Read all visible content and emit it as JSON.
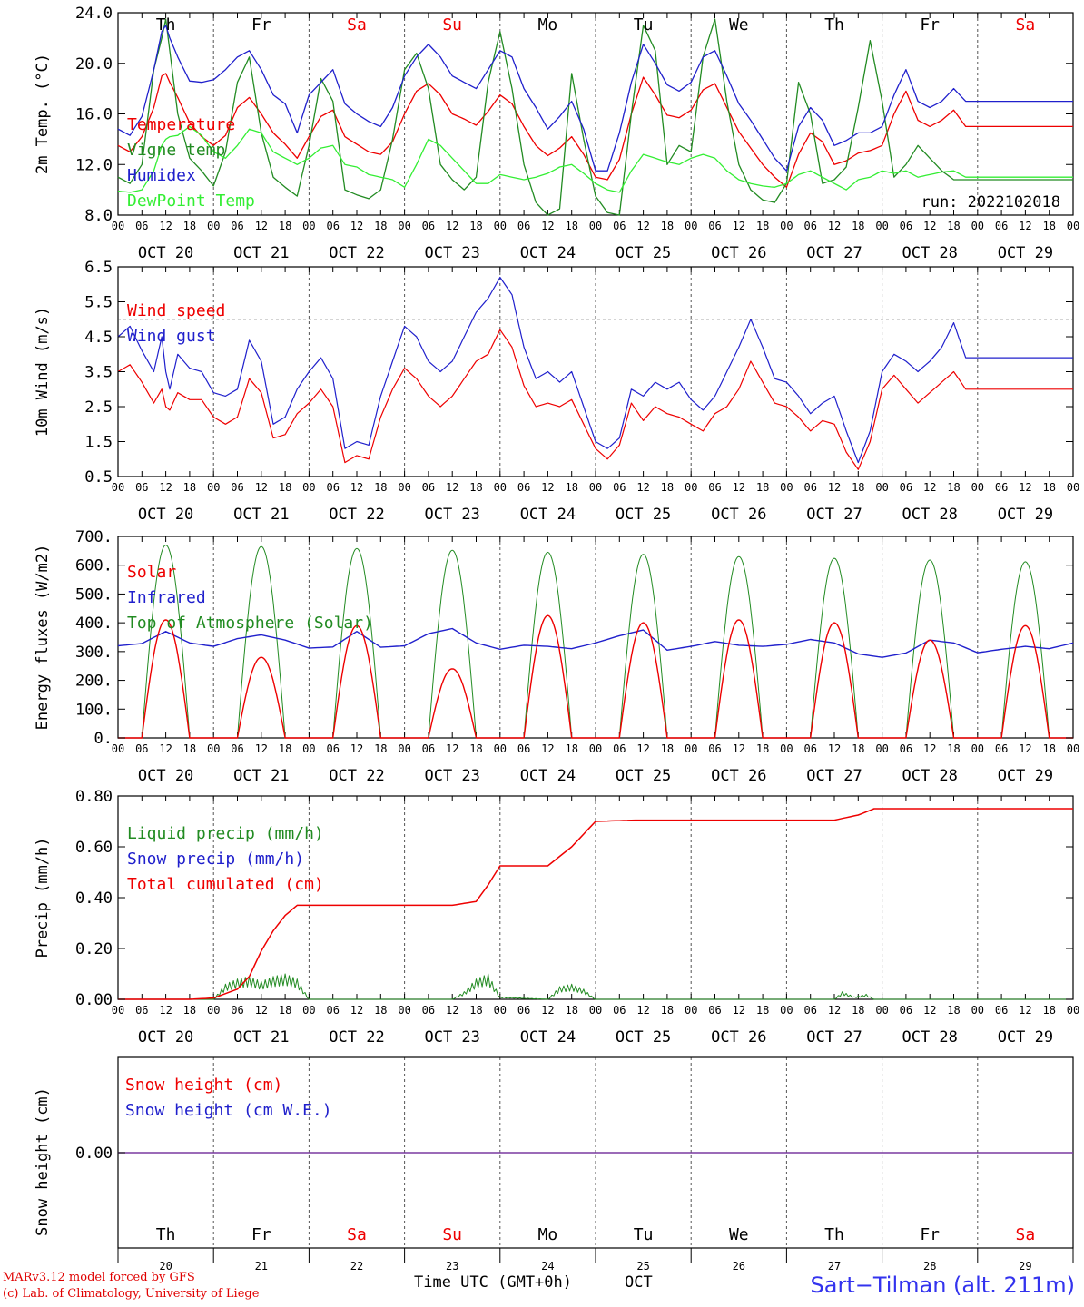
{
  "chart_data": [
    {
      "type": "line",
      "ylabel": "2m Temp. (°C)",
      "ylim": [
        8.0,
        24.0
      ],
      "yticks": [
        "8.0",
        "12.0",
        "16.0",
        "20.0",
        "24.0"
      ],
      "annotation": "run: 2022102018",
      "legend": [
        "Temperature",
        "Vigne temp",
        "Humidex",
        "DewPoint Temp"
      ],
      "x_hours": [
        0,
        3,
        6,
        9,
        11,
        12,
        13,
        15,
        18,
        21,
        24,
        27,
        30,
        33,
        36,
        39,
        42,
        45,
        48,
        51,
        54,
        57,
        60,
        63,
        66,
        69,
        72,
        75,
        78,
        81,
        84,
        87,
        90,
        93,
        96,
        99,
        102,
        105,
        108,
        111,
        114,
        117,
        120,
        123,
        126,
        129,
        132,
        135,
        138,
        141,
        144,
        147,
        150,
        153,
        156,
        159,
        162,
        165,
        168,
        171,
        174,
        177,
        180,
        183,
        186,
        189,
        192,
        195,
        198,
        201,
        204,
        207,
        210,
        213,
        216,
        219,
        222,
        225,
        228,
        231,
        234,
        237,
        240
      ],
      "series": [
        {
          "name": "Temperature",
          "color": "#ee0000",
          "values": [
            13.5,
            13.0,
            14.2,
            16.5,
            19.0,
            19.2,
            18.5,
            17.3,
            15.3,
            14.2,
            13.5,
            14.3,
            16.5,
            17.3,
            16.0,
            14.5,
            13.6,
            12.5,
            14.2,
            15.8,
            16.3,
            14.2,
            13.6,
            13.0,
            12.8,
            13.8,
            16.0,
            17.8,
            18.4,
            17.5,
            16.0,
            15.6,
            15.1,
            16.2,
            17.5,
            16.8,
            15.0,
            13.5,
            12.7,
            13.3,
            14.2,
            12.8,
            11.0,
            10.8,
            12.4,
            16.0,
            18.9,
            17.5,
            15.9,
            15.7,
            16.3,
            17.9,
            18.4,
            16.5,
            14.6,
            13.3,
            12.0,
            11.0,
            10.2,
            12.8,
            14.5,
            13.8,
            12.0,
            12.3,
            12.9,
            13.1,
            13.5,
            16.0,
            17.8,
            15.5,
            15.0,
            15.5,
            16.3,
            15.0,
            15.0,
            15.0,
            15.0,
            15.0,
            15.0,
            15.0,
            15.0,
            15.0,
            15.0
          ]
        },
        {
          "name": "Vigne temp",
          "color": "#228b22",
          "values": [
            11.0,
            10.5,
            12.0,
            19.5,
            22.0,
            23.5,
            21.0,
            16.0,
            12.5,
            11.5,
            10.3,
            13.0,
            18.5,
            20.5,
            14.5,
            11.0,
            10.2,
            9.5,
            13.5,
            18.8,
            17.0,
            10.0,
            9.6,
            9.3,
            10.0,
            14.0,
            19.5,
            20.8,
            18.0,
            12.0,
            10.8,
            10.0,
            11.0,
            18.5,
            22.5,
            18.0,
            12.0,
            9.0,
            8.0,
            8.5,
            19.2,
            14.0,
            9.5,
            8.2,
            8.0,
            16.0,
            23.0,
            21.0,
            12.0,
            13.5,
            13.0,
            20.5,
            23.5,
            17.0,
            12.0,
            10.0,
            9.2,
            9.0,
            10.5,
            18.5,
            16.0,
            10.5,
            10.8,
            11.8,
            16.5,
            21.8,
            17.0,
            11.0,
            12.0,
            13.5,
            12.5,
            11.5,
            10.8,
            10.8,
            10.8,
            10.8,
            10.8,
            10.8,
            10.8,
            10.8,
            10.8,
            10.8,
            10.8
          ]
        },
        {
          "name": "Humidex",
          "color": "#2020cc",
          "values": [
            14.8,
            14.3,
            15.8,
            19.5,
            22.5,
            23.0,
            22.0,
            20.5,
            18.6,
            18.5,
            18.7,
            19.5,
            20.5,
            21.0,
            19.5,
            17.5,
            16.8,
            14.5,
            17.5,
            18.5,
            19.5,
            16.8,
            16.0,
            15.4,
            15.0,
            16.5,
            19.0,
            20.5,
            21.5,
            20.5,
            19.0,
            18.5,
            18.0,
            19.5,
            21.0,
            20.5,
            18.0,
            16.5,
            14.8,
            15.8,
            17.0,
            14.8,
            11.5,
            11.5,
            14.5,
            18.5,
            21.5,
            20.0,
            18.3,
            17.8,
            18.5,
            20.5,
            21.0,
            19.0,
            16.8,
            15.5,
            14.0,
            12.5,
            11.5,
            15.0,
            16.5,
            15.5,
            13.5,
            13.9,
            14.5,
            14.5,
            15.0,
            17.5,
            19.5,
            17.0,
            16.5,
            17.0,
            18.0,
            17.0,
            17.0,
            17.0,
            17.0,
            17.0,
            17.0,
            17.0,
            17.0,
            17.0,
            17.0
          ]
        },
        {
          "name": "DewPoint Temp",
          "color": "#33ee33",
          "values": [
            9.9,
            9.8,
            10.0,
            11.5,
            13.5,
            14.0,
            14.2,
            14.3,
            15.0,
            14.3,
            13.0,
            12.5,
            13.5,
            14.8,
            14.5,
            13.0,
            12.5,
            12.0,
            12.5,
            13.3,
            13.5,
            12.0,
            11.8,
            11.2,
            11.0,
            10.8,
            10.2,
            12.0,
            14.0,
            13.5,
            12.5,
            11.5,
            10.5,
            10.5,
            11.2,
            11.0,
            10.8,
            11.0,
            11.3,
            11.8,
            12.0,
            11.3,
            10.5,
            10.0,
            9.8,
            11.5,
            12.8,
            12.5,
            12.2,
            12.0,
            12.5,
            12.8,
            12.5,
            11.5,
            10.8,
            10.5,
            10.3,
            10.2,
            10.5,
            11.2,
            11.5,
            11.0,
            10.5,
            10.0,
            10.8,
            11.0,
            11.5,
            11.3,
            11.5,
            11.0,
            11.2,
            11.4,
            11.5,
            11.0,
            11.0,
            11.0,
            11.0,
            11.0,
            11.0,
            11.0,
            11.0,
            11.0,
            11.0
          ]
        }
      ]
    },
    {
      "type": "line",
      "ylabel": "10m Wind (m/s)",
      "ylim": [
        0.5,
        6.5
      ],
      "yticks": [
        "0.5",
        "1.5",
        "2.5",
        "3.5",
        "4.5",
        "5.5",
        "6.5"
      ],
      "reference_line": 5.0,
      "legend": [
        "Wind speed",
        "Wind gust"
      ],
      "x_hours": [
        0,
        3,
        6,
        9,
        11,
        12,
        13,
        15,
        18,
        21,
        24,
        27,
        30,
        33,
        36,
        39,
        42,
        45,
        48,
        51,
        54,
        57,
        60,
        63,
        66,
        69,
        72,
        75,
        78,
        81,
        84,
        87,
        90,
        93,
        96,
        99,
        102,
        105,
        108,
        111,
        114,
        117,
        120,
        123,
        126,
        129,
        132,
        135,
        138,
        141,
        144,
        147,
        150,
        153,
        156,
        159,
        162,
        165,
        168,
        171,
        174,
        177,
        180,
        183,
        186,
        189,
        192,
        195,
        198,
        201,
        204,
        207,
        210,
        213,
        216,
        219,
        222,
        225,
        228,
        231,
        234,
        237,
        240
      ],
      "series": [
        {
          "name": "Wind speed",
          "color": "#ee0000",
          "values": [
            3.5,
            3.7,
            3.2,
            2.6,
            3.0,
            2.5,
            2.4,
            2.9,
            2.7,
            2.7,
            2.2,
            2.0,
            2.2,
            3.3,
            2.9,
            1.6,
            1.7,
            2.3,
            2.6,
            3.0,
            2.5,
            0.9,
            1.1,
            1.0,
            2.2,
            3.0,
            3.6,
            3.3,
            2.8,
            2.5,
            2.8,
            3.3,
            3.8,
            4.0,
            4.7,
            4.2,
            3.1,
            2.5,
            2.6,
            2.5,
            2.7,
            2.0,
            1.3,
            1.0,
            1.4,
            2.6,
            2.1,
            2.5,
            2.3,
            2.2,
            2.0,
            1.8,
            2.3,
            2.5,
            3.0,
            3.8,
            3.2,
            2.6,
            2.5,
            2.2,
            1.8,
            2.1,
            2.0,
            1.2,
            0.7,
            1.5,
            3.0,
            3.4,
            3.0,
            2.6,
            2.9,
            3.2,
            3.5,
            3.0,
            3.0,
            3.0,
            3.0,
            3.0,
            3.0,
            3.0,
            3.0,
            3.0,
            3.0
          ]
        },
        {
          "name": "Wind gust",
          "color": "#2020cc",
          "values": [
            4.5,
            4.8,
            4.1,
            3.5,
            4.5,
            3.5,
            3.0,
            4.0,
            3.6,
            3.5,
            2.9,
            2.8,
            3.0,
            4.4,
            3.8,
            2.0,
            2.2,
            3.0,
            3.5,
            3.9,
            3.3,
            1.3,
            1.5,
            1.4,
            2.8,
            3.8,
            4.8,
            4.5,
            3.8,
            3.5,
            3.8,
            4.5,
            5.2,
            5.6,
            6.2,
            5.7,
            4.2,
            3.3,
            3.5,
            3.2,
            3.5,
            2.5,
            1.5,
            1.3,
            1.6,
            3.0,
            2.8,
            3.2,
            3.0,
            3.2,
            2.7,
            2.4,
            2.8,
            3.5,
            4.2,
            5.0,
            4.2,
            3.3,
            3.2,
            2.8,
            2.3,
            2.6,
            2.8,
            1.8,
            0.9,
            1.8,
            3.5,
            4.0,
            3.8,
            3.5,
            3.8,
            4.2,
            4.9,
            3.9,
            3.9,
            3.9,
            3.9,
            3.9,
            3.9,
            3.9,
            3.9,
            3.9,
            3.9
          ]
        }
      ]
    },
    {
      "type": "line",
      "ylabel": "Energy fluxes (W/m2)",
      "ylim": [
        0,
        700
      ],
      "yticks": [
        "0.",
        "100.",
        "200.",
        "300.",
        "400.",
        "500.",
        "600.",
        "700."
      ],
      "legend": [
        "Solar",
        "Infrared",
        "Top of Atmosphere (Solar)"
      ],
      "sunrise_hour": 6,
      "sunset_hour": 18,
      "toa_peak": [
        670,
        665,
        658,
        652,
        645,
        638,
        630,
        624,
        618,
        612
      ],
      "solar_peak": [
        410,
        280,
        390,
        240,
        425,
        400,
        410,
        400,
        340,
        390
      ],
      "infrared": {
        "color": "#2020cc",
        "x_hours": [
          0,
          6,
          12,
          18,
          24,
          30,
          36,
          42,
          48,
          54,
          60,
          66,
          72,
          78,
          84,
          90,
          96,
          102,
          108,
          114,
          120,
          126,
          132,
          138,
          144,
          150,
          156,
          162,
          168,
          174,
          180,
          186,
          192,
          198,
          204,
          210,
          216,
          222,
          228,
          234,
          240
        ],
        "values": [
          320,
          328,
          370,
          330,
          318,
          345,
          358,
          340,
          312,
          316,
          370,
          315,
          320,
          362,
          380,
          330,
          308,
          322,
          318,
          310,
          330,
          355,
          375,
          305,
          318,
          335,
          322,
          318,
          325,
          342,
          330,
          292,
          280,
          295,
          340,
          330,
          296,
          308,
          318,
          310,
          330
        ]
      },
      "series_colors": {
        "Solar": "#ee0000",
        "Infrared": "#2020cc",
        "Top of Atmosphere (Solar)": "#228b22"
      }
    },
    {
      "type": "line",
      "ylabel": "Precip (mm/h)",
      "ylim": [
        0.0,
        0.8
      ],
      "yticks": [
        "0.00",
        "0.20",
        "0.40",
        "0.60",
        "0.80"
      ],
      "legend": [
        "Liquid precip (mm/h)",
        "Snow precip (mm/h)",
        "Total cumulated (cm)"
      ],
      "series": [
        {
          "name": "Total cumulated (cm)",
          "color": "#ee0000",
          "x_hours": [
            0,
            18,
            24,
            30,
            33,
            36,
            39,
            42,
            45,
            48,
            72,
            84,
            90,
            93,
            96,
            108,
            114,
            117,
            120,
            130,
            180,
            186,
            190,
            240
          ],
          "values": [
            0,
            0,
            0.005,
            0.04,
            0.09,
            0.19,
            0.27,
            0.33,
            0.37,
            0.37,
            0.37,
            0.37,
            0.385,
            0.45,
            0.525,
            0.525,
            0.6,
            0.65,
            0.7,
            0.705,
            0.705,
            0.725,
            0.75,
            0.75
          ]
        },
        {
          "name": "Liquid precip (mm/h)",
          "color": "#228b22",
          "x_hours": [
            0,
            24,
            27,
            30,
            33,
            36,
            39,
            42,
            45,
            48,
            84,
            87,
            90,
            93,
            96,
            108,
            111,
            114,
            117,
            120,
            180,
            182,
            185,
            188,
            190,
            240
          ],
          "values": [
            0,
            0,
            0.06,
            0.08,
            0.09,
            0.07,
            0.09,
            0.1,
            0.08,
            0,
            0,
            0.03,
            0.08,
            0.1,
            0.01,
            0,
            0.05,
            0.06,
            0.04,
            0,
            0,
            0.03,
            0.01,
            0.02,
            0,
            0
          ]
        }
      ]
    },
    {
      "type": "line",
      "ylabel": "Snow height (cm)",
      "yticks": [
        "0.00"
      ],
      "legend": [
        "Snow height (cm)",
        "Snow height (cm W.E.)"
      ],
      "series": [
        {
          "name": "Snow height (cm)",
          "color": "#ee0000",
          "values": [
            0.0,
            0.0
          ]
        },
        {
          "name": "Snow height (cm W.E.)",
          "color": "#2020cc",
          "values": [
            0.0,
            0.0
          ]
        }
      ]
    }
  ],
  "x_axis": {
    "hour_ticks": [
      "00",
      "06",
      "12",
      "18"
    ],
    "dates": [
      "OCT 20",
      "OCT 21",
      "OCT 22",
      "OCT 23",
      "OCT 24",
      "OCT 25",
      "OCT 26",
      "OCT 27",
      "OCT 28",
      "OCT 29"
    ],
    "weekdays": [
      "Th",
      "Fr",
      "Sa",
      "Su",
      "Mo",
      "Tu",
      "We",
      "Th",
      "Fr",
      "Sa"
    ],
    "weekend_flags": [
      false,
      false,
      true,
      true,
      false,
      false,
      false,
      false,
      false,
      true
    ],
    "day_numbers": [
      "20",
      "21",
      "22",
      "23",
      "24",
      "25",
      "26",
      "27",
      "28",
      "29"
    ],
    "xlabel": "Time UTC (GMT+0h)",
    "month": "OCT"
  },
  "colors": {
    "weekday": "#000000",
    "weekend": "#ee0000",
    "axis": "#000000",
    "grid": "#555555"
  },
  "footer": {
    "credit_line1": "MARv3.12 model forced by GFS",
    "credit_line2": "(c) Lab. of Climatology, University of Liege",
    "station": "Sart−Tilman (alt. 211m)"
  }
}
